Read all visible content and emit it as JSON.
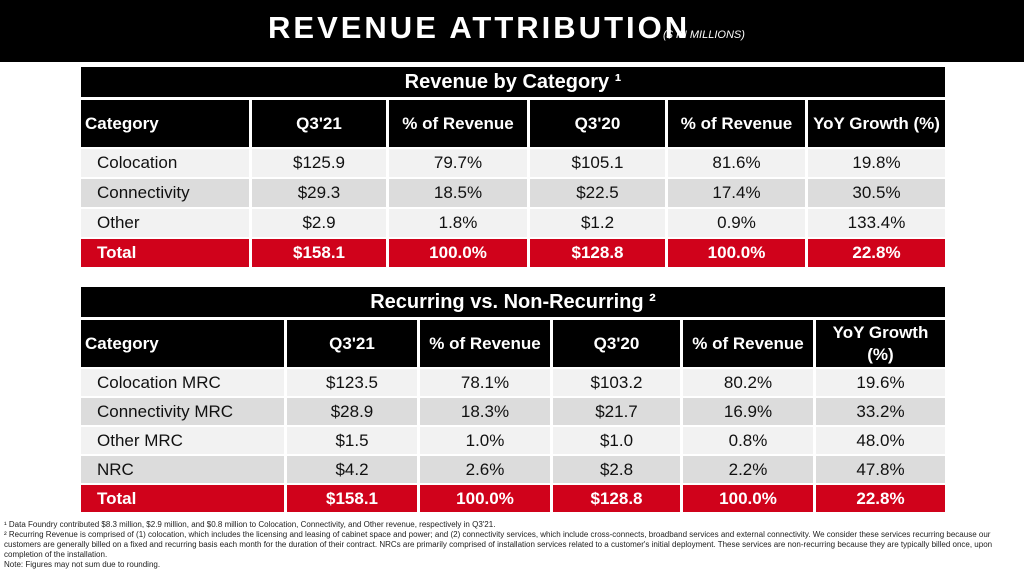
{
  "header": {
    "title": "REVENUE ATTRIBUTION",
    "subtitle": "($ IN MILLIONS)"
  },
  "table1": {
    "title": "Revenue by Category ¹",
    "columns": [
      "Category",
      "Q3'21",
      "% of Revenue",
      "Q3'20",
      "% of Revenue",
      "YoY Growth (%)"
    ],
    "rows": [
      [
        "Colocation",
        "$125.9",
        "79.7%",
        "$105.1",
        "81.6%",
        "19.8%"
      ],
      [
        "Connectivity",
        "$29.3",
        "18.5%",
        "$22.5",
        "17.4%",
        "30.5%"
      ],
      [
        "Other",
        "$2.9",
        "1.8%",
        "$1.2",
        "0.9%",
        "133.4%"
      ]
    ],
    "total": [
      "Total",
      "$158.1",
      "100.0%",
      "$128.8",
      "100.0%",
      "22.8%"
    ]
  },
  "table2": {
    "title": "Recurring vs. Non-Recurring ²",
    "columns": [
      "Category",
      "Q3'21",
      "% of Revenue",
      "Q3'20",
      "% of Revenue",
      "YoY Growth (%)"
    ],
    "rows": [
      [
        "Colocation MRC",
        "$123.5",
        "78.1%",
        "$103.2",
        "80.2%",
        "19.6%"
      ],
      [
        "Connectivity MRC",
        "$28.9",
        "18.3%",
        "$21.7",
        "16.9%",
        "33.2%"
      ],
      [
        "Other MRC",
        "$1.5",
        "1.0%",
        "$1.0",
        "0.8%",
        "48.0%"
      ],
      [
        "NRC",
        "$4.2",
        "2.6%",
        "$2.8",
        "2.2%",
        "47.8%"
      ]
    ],
    "total": [
      "Total",
      "$158.1",
      "100.0%",
      "$128.8",
      "100.0%",
      "22.8%"
    ]
  },
  "footnotes": [
    "¹ Data Foundry contributed $8.3 million, $2.9 million, and $0.8 million to Colocation, Connectivity, and Other revenue, respectively in Q3'21.",
    "² Recurring Revenue is comprised of (1) colocation, which includes the licensing and leasing of cabinet space and power; and (2) connectivity services, which include cross-connects, broadband services and external connectivity. We consider these services recurring because our customers are generally billed on a fixed and recurring basis each month for the duration of their contract. NRCs are primarily comprised of installation services related to a customer's initial deployment. These services are non-recurring because they are typically billed once, upon completion of the installation.",
    "Note: Figures may not sum due to rounding."
  ],
  "colors": {
    "header_bg": "#000000",
    "total_row": "#d0021b",
    "row_light": "#f2f2f2",
    "row_dark": "#dcdcdc"
  }
}
